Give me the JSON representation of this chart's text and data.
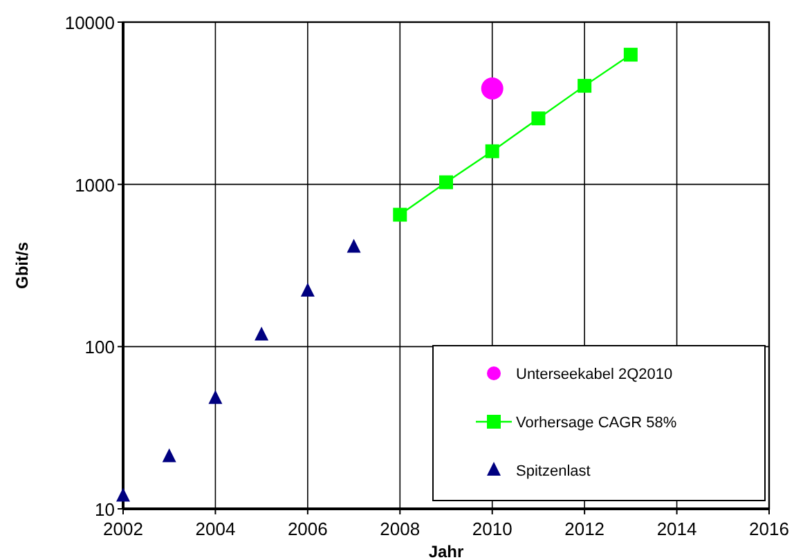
{
  "chart_data": {
    "type": "scatter",
    "xlabel": "Jahr",
    "ylabel": "Gbit/s",
    "log": "y",
    "grid": true,
    "legend": "bottom right",
    "xlim": [
      2002,
      2016
    ],
    "xticks": [
      2002,
      2004,
      2006,
      2008,
      2010,
      2012,
      2014,
      2016
    ],
    "ylim": [
      10,
      10000
    ],
    "yticks": [
      10,
      100,
      1000,
      10000
    ],
    "series": [
      {
        "name": "Unterseekabel 2Q2010",
        "type": "scatter",
        "marker": "circle",
        "color": "#ff00ff",
        "x": [
          2010
        ],
        "values": [
          3900
        ]
      },
      {
        "name": "Vorhersage CAGR 58%",
        "type": "line",
        "marker": "square",
        "color": "#00ff00",
        "x": [
          2008,
          2009,
          2010,
          2011,
          2012,
          2013
        ],
        "values": [
          650,
          1030,
          1600,
          2550,
          4050,
          6300
        ]
      },
      {
        "name": "Spitzenlast",
        "type": "scatter",
        "marker": "triangle",
        "color": "#000080",
        "x": [
          2002,
          2003,
          2004,
          2005,
          2006,
          2007
        ],
        "values": [
          12,
          21,
          48,
          118,
          220,
          410
        ]
      }
    ]
  }
}
